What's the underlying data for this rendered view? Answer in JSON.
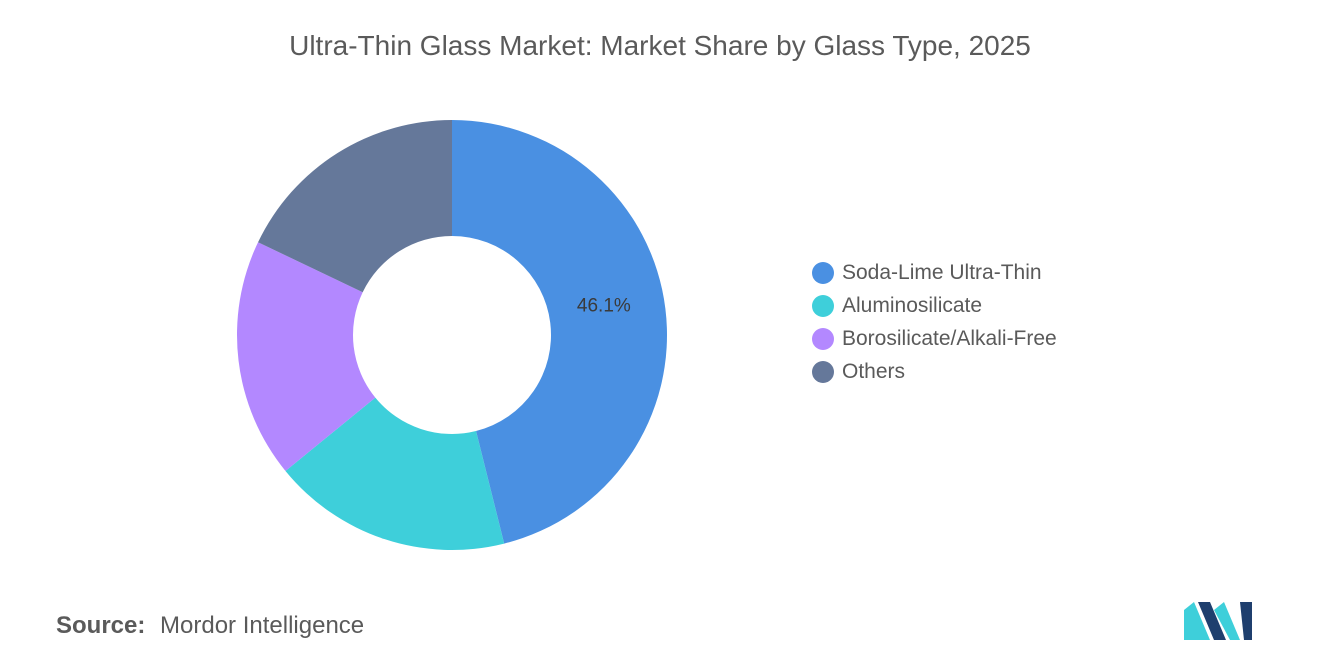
{
  "header": {
    "title": "Ultra-Thin Glass Market: Market Share by Glass Type, 2025"
  },
  "chart_data": {
    "type": "pie",
    "variant": "donut",
    "title": "Ultra-Thin Glass Market: Market Share by Glass Type, 2025",
    "unit": "%",
    "categories": [
      "Soda-Lime Ultra-Thin",
      "Aluminosilicate",
      "Borosilicate/Alkali-Free",
      "Others"
    ],
    "values": [
      46.1,
      18.0,
      18.0,
      17.9
    ],
    "colors": [
      "#4a90e2",
      "#3ecfda",
      "#b388ff",
      "#65789a"
    ],
    "data_labels": [
      {
        "category": "Soda-Lime Ultra-Thin",
        "text": "46.1%"
      }
    ],
    "start_angle_deg": 0,
    "direction": "clockwise",
    "legend_position": "right"
  },
  "legend": {
    "items": [
      {
        "label": "Soda-Lime Ultra-Thin",
        "color": "#4a90e2"
      },
      {
        "label": "Aluminosilicate",
        "color": "#3ecfda"
      },
      {
        "label": "Borosilicate/Alkali-Free",
        "color": "#b388ff"
      },
      {
        "label": "Others",
        "color": "#65789a"
      }
    ]
  },
  "footer": {
    "source_label": "Source:",
    "source_value": "Mordor Intelligence",
    "logo_icon": "mordor-intelligence-logo-icon",
    "logo_colors": [
      "#1f3f6e",
      "#3ecfda"
    ]
  }
}
